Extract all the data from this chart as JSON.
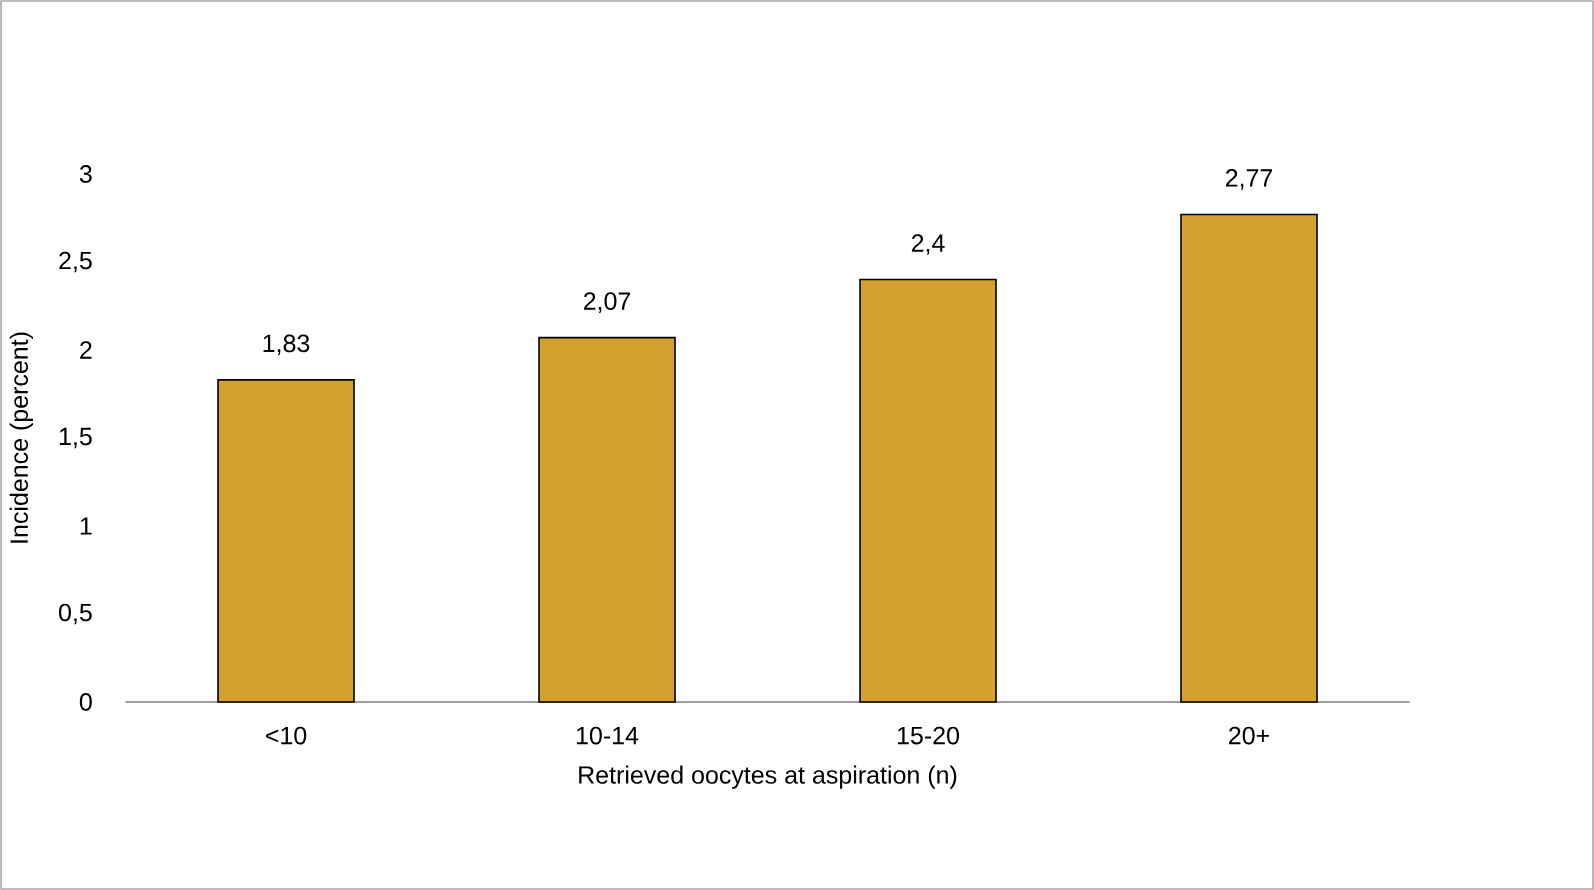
{
  "chart_data": {
    "type": "bar",
    "xlabel": "Retrieved oocytes at aspiration (n)",
    "ylabel": "Incidence (percent)",
    "categories": [
      "<10",
      "10-14",
      "15-20",
      "20+"
    ],
    "values": [
      1.83,
      2.07,
      2.4,
      2.77
    ],
    "value_labels": [
      "1,83",
      "2,07",
      "2,4",
      "2,77"
    ],
    "color": "#d4a12e",
    "ylim": [
      0,
      3
    ],
    "yticks": [
      0,
      {
        "value": 0.5,
        "label": "0,5"
      },
      1,
      {
        "value": 1.5,
        "label": "1,5"
      },
      2,
      {
        "value": 2.5,
        "label": "2,5"
      },
      3
    ]
  }
}
